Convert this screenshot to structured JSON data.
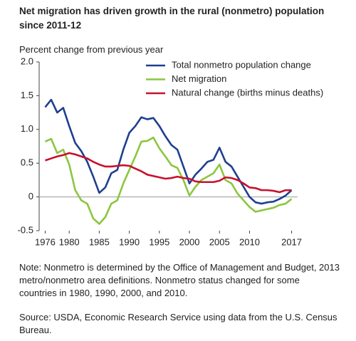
{
  "chart_data": {
    "type": "line",
    "title": "Net migration has driven growth in the rural (nonmetro) population since 2011-12",
    "y_axis_label": "Percent change from previous year",
    "note": "Note: Nonmetro is determined by the Office of Management and Budget, 2013 metro/nonmetro area definitions. Nonmetro status changed for some countries in 1980, 1990, 2000, and 2010.",
    "source": "Source: USDA, Economic Research Service using data from the U.S. Census Bureau.",
    "x": [
      1976,
      1977,
      1978,
      1979,
      1980,
      1981,
      1982,
      1983,
      1984,
      1985,
      1986,
      1987,
      1988,
      1989,
      1990,
      1991,
      1992,
      1993,
      1994,
      1995,
      1996,
      1997,
      1998,
      1999,
      2000,
      2001,
      2002,
      2003,
      2004,
      2005,
      2006,
      2007,
      2008,
      2009,
      2010,
      2011,
      2012,
      2013,
      2014,
      2015,
      2016,
      2017
    ],
    "series": [
      {
        "name": "Total nonmetro population change",
        "color": "#1f3f8f",
        "values": [
          1.33,
          1.44,
          1.25,
          1.32,
          1.05,
          0.8,
          0.68,
          0.52,
          0.3,
          0.06,
          0.14,
          0.35,
          0.4,
          0.7,
          0.95,
          1.05,
          1.18,
          1.15,
          1.17,
          1.05,
          0.9,
          0.77,
          0.7,
          0.45,
          0.2,
          0.33,
          0.42,
          0.52,
          0.55,
          0.73,
          0.52,
          0.45,
          0.3,
          0.15,
          0.0,
          -0.08,
          -0.1,
          -0.08,
          -0.07,
          -0.03,
          0.02,
          0.1
        ]
      },
      {
        "name": "Net migration",
        "color": "#8cc63f",
        "values": [
          0.82,
          0.86,
          0.65,
          0.7,
          0.48,
          0.1,
          -0.05,
          -0.1,
          -0.32,
          -0.4,
          -0.3,
          -0.1,
          -0.05,
          0.2,
          0.4,
          0.6,
          0.82,
          0.83,
          0.88,
          0.72,
          0.6,
          0.47,
          0.43,
          0.25,
          0.02,
          0.15,
          0.25,
          0.3,
          0.35,
          0.48,
          0.25,
          0.2,
          0.05,
          -0.05,
          -0.15,
          -0.22,
          -0.2,
          -0.18,
          -0.16,
          -0.12,
          -0.1,
          -0.03
        ]
      },
      {
        "name": "Natural change (births minus deaths)",
        "color": "#c8102e",
        "values": [
          0.54,
          0.57,
          0.6,
          0.62,
          0.65,
          0.63,
          0.6,
          0.57,
          0.52,
          0.48,
          0.45,
          0.45,
          0.46,
          0.47,
          0.46,
          0.42,
          0.38,
          0.33,
          0.31,
          0.29,
          0.27,
          0.28,
          0.3,
          0.28,
          0.27,
          0.23,
          0.22,
          0.22,
          0.22,
          0.24,
          0.29,
          0.28,
          0.25,
          0.2,
          0.14,
          0.13,
          0.1,
          0.1,
          0.09,
          0.07,
          0.1,
          0.1
        ]
      }
    ],
    "xlim": [
      1975,
      2018
    ],
    "xticks": [
      1976,
      1980,
      1985,
      1990,
      1995,
      2000,
      2005,
      2010,
      2017
    ],
    "ylim": [
      -0.5,
      2
    ],
    "yticks": [
      {
        "value": 2,
        "label": "2.0"
      },
      1.5,
      {
        "value": 1,
        "label": "1.0"
      },
      0.5,
      0,
      -0.5
    ],
    "legend": "upper right"
  }
}
